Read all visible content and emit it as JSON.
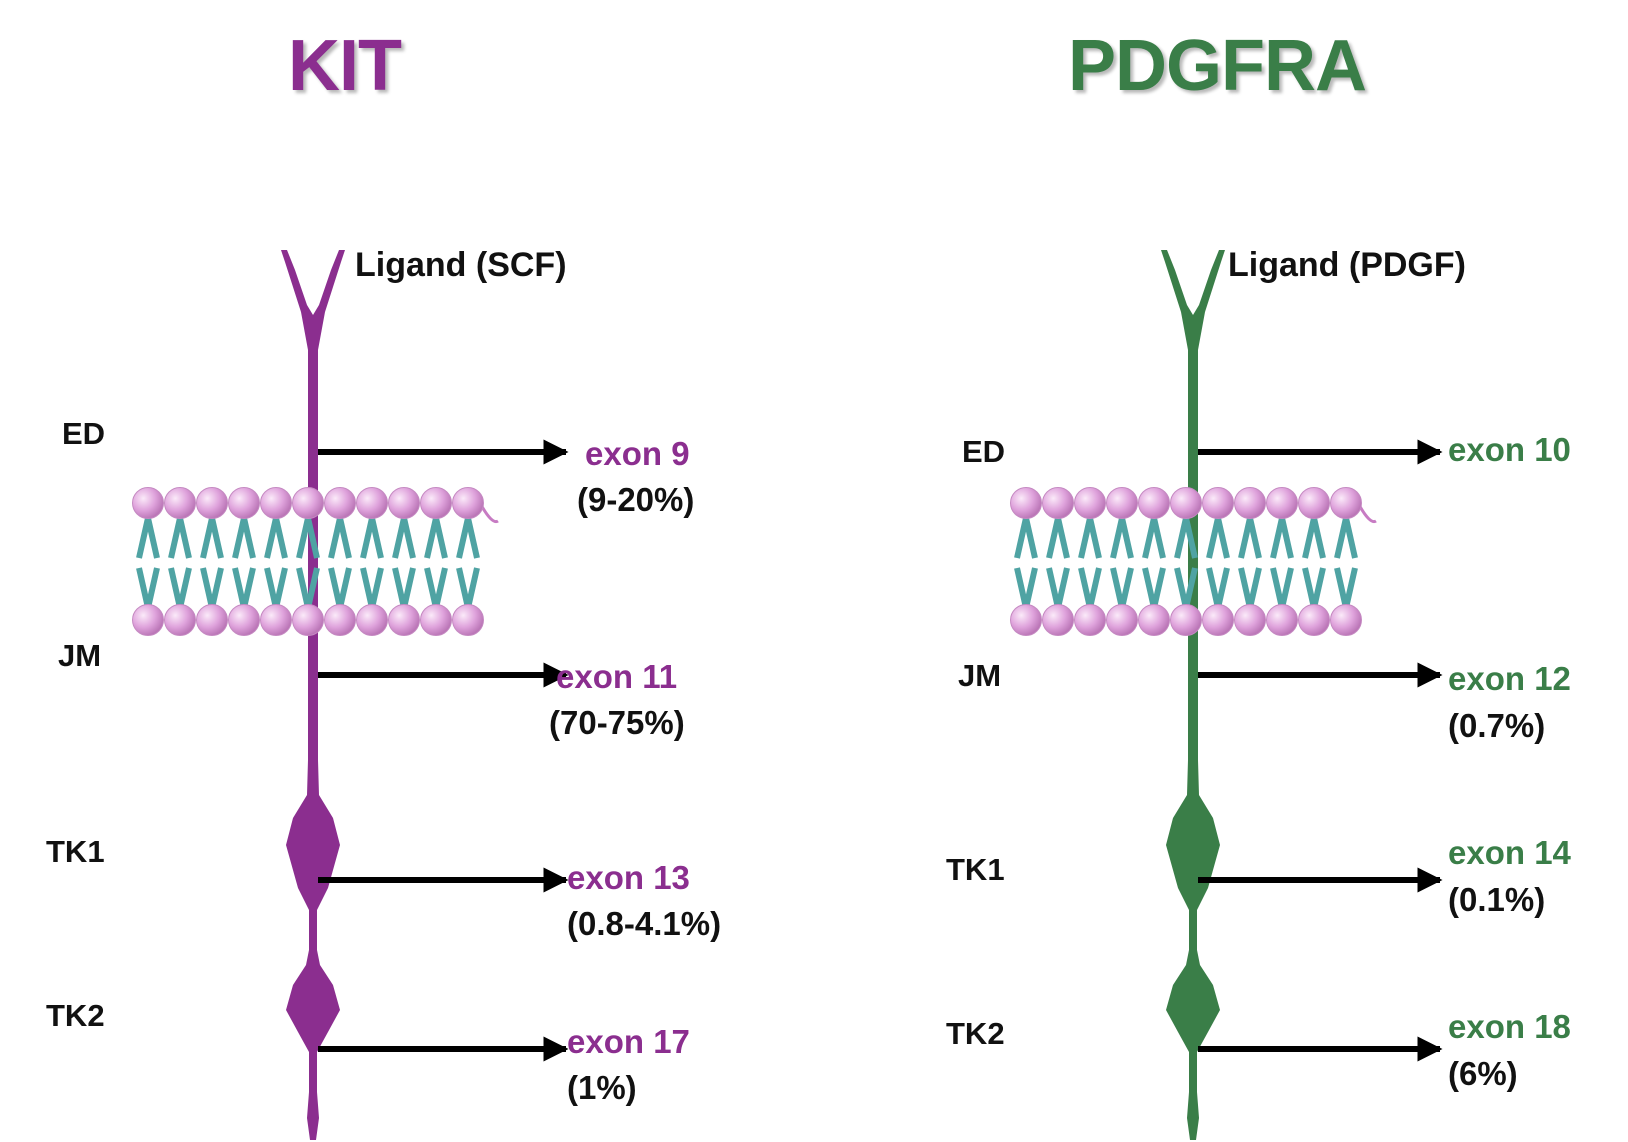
{
  "colors": {
    "kit": "#8B2E8F",
    "pdgfra": "#3A7E48",
    "arrow": "#000000",
    "lipid_head": "#DFA3DC",
    "lipid_tail": "#4FA3A3"
  },
  "kit": {
    "title": "KIT",
    "ligand": "Ligand (SCF)",
    "domains": {
      "ed": "ED",
      "jm": "JM",
      "tk1": "TK1",
      "tk2": "TK2"
    },
    "mutations": [
      {
        "exon": "exon 9",
        "freq": "(9-20%)"
      },
      {
        "exon": "exon 11",
        "freq": "(70-75%)"
      },
      {
        "exon": "exon 13",
        "freq": "(0.8-4.1%)"
      },
      {
        "exon": "exon 17",
        "freq": "(1%)"
      }
    ]
  },
  "pdgfra": {
    "title": "PDGFRA",
    "ligand": "Ligand (PDGF)",
    "domains": {
      "ed": "ED",
      "jm": "JM",
      "tk1": "TK1",
      "tk2": "TK2"
    },
    "mutations": [
      {
        "exon": "exon 10",
        "freq": ""
      },
      {
        "exon": "exon 12",
        "freq": "(0.7%)"
      },
      {
        "exon": "exon 14",
        "freq": "(0.1%)"
      },
      {
        "exon": "exon 18",
        "freq": "(6%)"
      }
    ]
  }
}
